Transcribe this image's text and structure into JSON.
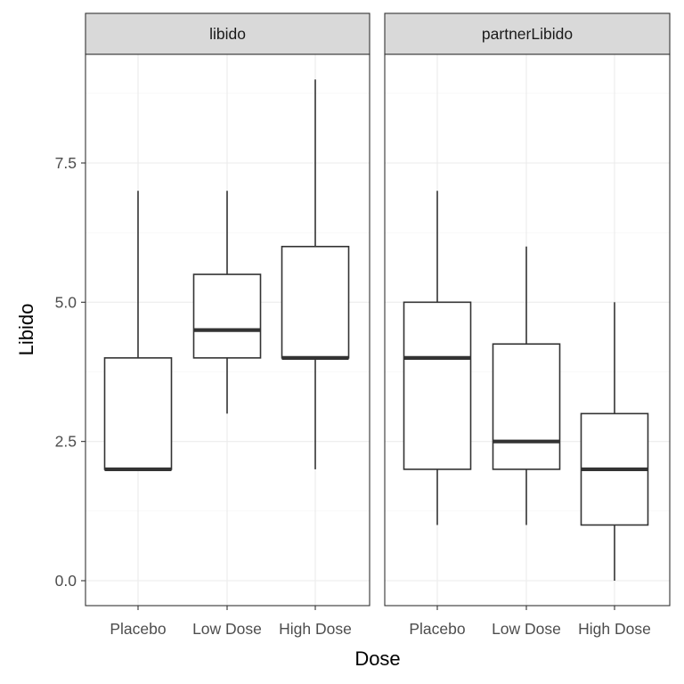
{
  "chart_data": {
    "type": "boxplot",
    "xlabel": "Dose",
    "ylabel": "Libido",
    "ylim": [
      -0.45,
      9.2
    ],
    "yticks": [
      0.0,
      2.5,
      5.0,
      7.5
    ],
    "ytick_labels": [
      "0.0",
      "2.5",
      "5.0",
      "7.5"
    ],
    "categories": [
      "Placebo",
      "Low Dose",
      "High Dose"
    ],
    "grid": true,
    "panels": [
      {
        "name": "libido",
        "boxes": [
          {
            "category": "Placebo",
            "min": 2,
            "q1": 2,
            "median": 2,
            "q3": 4,
            "max": 7
          },
          {
            "category": "Low Dose",
            "min": 3,
            "q1": 4,
            "median": 4.5,
            "q3": 5.5,
            "max": 7
          },
          {
            "category": "High Dose",
            "min": 2,
            "q1": 4,
            "median": 4,
            "q3": 6,
            "max": 9
          }
        ]
      },
      {
        "name": "partnerLibido",
        "boxes": [
          {
            "category": "Placebo",
            "min": 1,
            "q1": 2,
            "median": 4,
            "q3": 5,
            "max": 7
          },
          {
            "category": "Low Dose",
            "min": 1,
            "q1": 2,
            "median": 2.5,
            "q3": 4.25,
            "max": 6
          },
          {
            "category": "High Dose",
            "min": 0,
            "q1": 1,
            "median": 2,
            "q3": 3,
            "max": 5
          }
        ]
      }
    ]
  }
}
